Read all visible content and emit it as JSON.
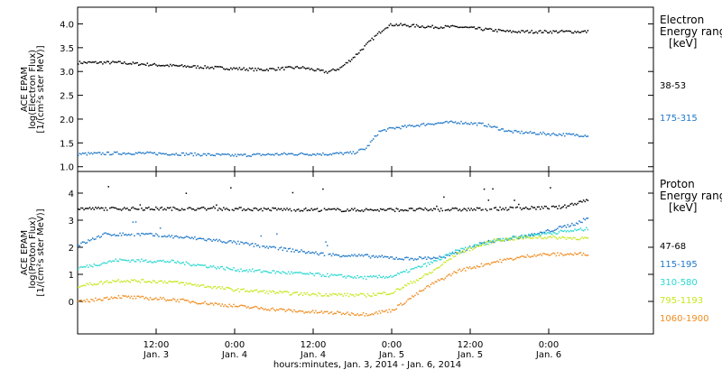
{
  "x_axis": {
    "title": "hours:minutes, Jan.  3, 2014 - Jan.  6, 2014",
    "range_hours": [
      0,
      88
    ],
    "ticks": [
      {
        "hour": 12,
        "time": "12:00",
        "date": "Jan. 3"
      },
      {
        "hour": 24,
        "time": "0:00",
        "date": "Jan. 4"
      },
      {
        "hour": 36,
        "time": "12:00",
        "date": "Jan. 4"
      },
      {
        "hour": 48,
        "time": "0:00",
        "date": "Jan. 5"
      },
      {
        "hour": 60,
        "time": "12:00",
        "date": "Jan. 5"
      },
      {
        "hour": 72,
        "time": "0:00",
        "date": "Jan. 6"
      }
    ],
    "data_end_hour": 78
  },
  "chart_data": [
    {
      "type": "scatter",
      "ylabel_lines": [
        "ACE EPAM",
        "log(Electron Flux)",
        "[1/(cm²s ster MeV)]"
      ],
      "ylim": [
        0.9,
        4.35
      ],
      "yticks": [
        1.0,
        1.5,
        2.0,
        2.5,
        3.0,
        3.5,
        4.0
      ],
      "ytick_labels": [
        "1.0",
        "1.5",
        "2.0",
        "2.5",
        "3.0",
        "3.5",
        "4.0"
      ],
      "legend_title": [
        "Electron",
        "Energy ranges",
        "[keV]"
      ],
      "series": [
        {
          "name": "38-53",
          "color": "#000000",
          "x": [
            0,
            6,
            12,
            20,
            28,
            34,
            38,
            40,
            42,
            45,
            47,
            48,
            54,
            58,
            66,
            78
          ],
          "y": [
            3.2,
            3.2,
            3.15,
            3.1,
            3.05,
            3.1,
            3.0,
            3.08,
            3.3,
            3.7,
            3.95,
            4.0,
            3.95,
            3.95,
            3.85,
            3.85
          ]
        },
        {
          "name": "175-315",
          "color": "#1f78c8",
          "x": [
            0,
            8,
            16,
            24,
            32,
            38,
            42,
            44,
            46,
            48,
            54,
            58,
            62,
            66,
            72,
            78
          ],
          "y": [
            1.28,
            1.3,
            1.28,
            1.25,
            1.28,
            1.28,
            1.3,
            1.4,
            1.75,
            1.82,
            1.92,
            1.95,
            1.9,
            1.75,
            1.7,
            1.67
          ]
        }
      ]
    },
    {
      "type": "scatter",
      "ylabel_lines": [
        "ACE EPAM",
        "log(Proton Flux)",
        "[1/(cm²s ster MeV)]"
      ],
      "ylim": [
        -1.2,
        4.8
      ],
      "yticks": [
        0,
        1,
        2,
        3,
        4
      ],
      "ytick_labels": [
        "0",
        "1",
        "2",
        "3",
        "4"
      ],
      "legend_title": [
        "Proton",
        "Energy ranges",
        "[keV]"
      ],
      "series": [
        {
          "name": "47-68",
          "color": "#000000",
          "x": [
            0,
            20,
            40,
            60,
            74,
            78
          ],
          "y": [
            3.45,
            3.45,
            3.4,
            3.42,
            3.5,
            3.8
          ]
        },
        {
          "name": "115-195",
          "color": "#1f78c8",
          "x": [
            0,
            4,
            10,
            18,
            24,
            30,
            38,
            44,
            50,
            56,
            62,
            70,
            76,
            78
          ],
          "y": [
            2.1,
            2.5,
            2.5,
            2.35,
            2.2,
            2.0,
            1.75,
            1.7,
            1.6,
            1.65,
            2.2,
            2.5,
            2.9,
            3.1
          ]
        },
        {
          "name": "310-580",
          "color": "#2ad8d0",
          "x": [
            0,
            6,
            14,
            24,
            34,
            44,
            48,
            54,
            58,
            64,
            70,
            78
          ],
          "y": [
            1.25,
            1.55,
            1.5,
            1.2,
            1.05,
            0.9,
            0.95,
            1.45,
            1.9,
            2.3,
            2.5,
            2.7
          ]
        },
        {
          "name": "795-1193",
          "color": "#c8e61e",
          "x": [
            0,
            6,
            14,
            24,
            34,
            44,
            48,
            54,
            58,
            64,
            70,
            78
          ],
          "y": [
            0.6,
            0.8,
            0.75,
            0.45,
            0.3,
            0.25,
            0.35,
            1.1,
            1.8,
            2.3,
            2.4,
            2.35
          ]
        },
        {
          "name": "1060-1900",
          "color": "#f08c1e",
          "x": [
            0,
            6,
            14,
            24,
            34,
            44,
            48,
            54,
            58,
            64,
            70,
            78
          ],
          "y": [
            0.0,
            0.2,
            0.1,
            -0.15,
            -0.35,
            -0.45,
            -0.3,
            0.65,
            1.15,
            1.5,
            1.75,
            1.78
          ]
        }
      ]
    }
  ]
}
